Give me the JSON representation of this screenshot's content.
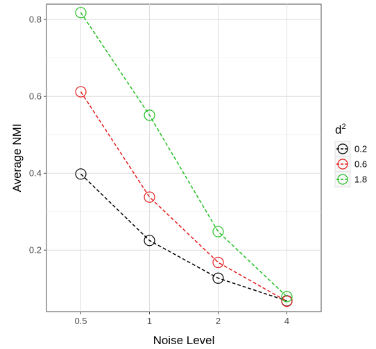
{
  "chart_data": {
    "type": "line",
    "xlabel": "Noise Level",
    "ylabel": "Average NMI",
    "categories": [
      "0.5",
      "1",
      "2",
      "4"
    ],
    "ylim": [
      0.04,
      0.84
    ],
    "yticks": [
      0.2,
      0.4,
      0.6,
      0.8
    ],
    "ytick_labels": [
      "0.2",
      "0.4",
      "0.6",
      "0.8"
    ],
    "grid": true,
    "legend": {
      "title_base": "d",
      "title_sup": "2",
      "position": "right"
    },
    "series": [
      {
        "name": "0.2",
        "color": "#000000",
        "values": [
          0.398,
          0.225,
          0.127,
          0.068
        ]
      },
      {
        "name": "0.6",
        "color": "#e41a1c",
        "values": [
          0.612,
          0.338,
          0.168,
          0.067
        ]
      },
      {
        "name": "1.8",
        "color": "#1fbf1f",
        "values": [
          0.818,
          0.551,
          0.248,
          0.079
        ]
      }
    ]
  }
}
